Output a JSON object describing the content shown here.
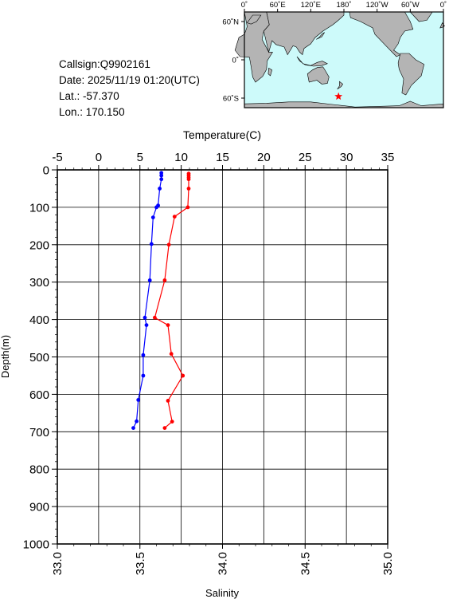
{
  "info": {
    "callsign": "Callsign:Q9902161",
    "date": "Date:  2025/11/19 01:20(UTC)",
    "lat": "Lat.:  -57.370",
    "lon": "Lon.:  170.150"
  },
  "map": {
    "lon_labels": [
      "0˚",
      "60˚E",
      "120˚E",
      "180˚",
      "120˚W",
      "60˚W",
      "0˚"
    ],
    "lat_labels": [
      "60˚N",
      "0˚",
      "60˚S"
    ],
    "ocean_color": "#cdfafa",
    "land_color": "#b4b4b4",
    "marker": {
      "lon": 170.15,
      "lat": -57.37,
      "color": "#ff0000"
    }
  },
  "chart_data": {
    "type": "line",
    "y_axis": {
      "label": "Depth(m)",
      "range": [
        0,
        1000
      ],
      "ticks": [
        "0",
        "100",
        "200",
        "300",
        "400",
        "500",
        "600",
        "700",
        "800",
        "900",
        "1000"
      ],
      "inverted": true
    },
    "top_axis": {
      "label": "Temperature(C)",
      "range": [
        -5,
        35
      ],
      "ticks": [
        "-5",
        "0",
        "5",
        "10",
        "15",
        "20",
        "25",
        "30",
        "35"
      ]
    },
    "bottom_axis": {
      "label": "Salinity",
      "range": [
        33.0,
        35.0
      ],
      "ticks": [
        "33.0",
        "33.5",
        "34.0",
        "34.5",
        "35.0"
      ]
    },
    "grid": true,
    "series": [
      {
        "axis": "top",
        "color": "#ff0000",
        "points": [
          {
            "x": 10.9,
            "y": 10
          },
          {
            "x": 10.9,
            "y": 15
          },
          {
            "x": 10.9,
            "y": 20
          },
          {
            "x": 10.9,
            "y": 25
          },
          {
            "x": 10.9,
            "y": 50
          },
          {
            "x": 10.8,
            "y": 100
          },
          {
            "x": 9.2,
            "y": 125
          },
          {
            "x": 8.5,
            "y": 200
          },
          {
            "x": 8.0,
            "y": 295
          },
          {
            "x": 6.8,
            "y": 395
          },
          {
            "x": 8.4,
            "y": 415
          },
          {
            "x": 8.8,
            "y": 492
          },
          {
            "x": 10.2,
            "y": 550
          },
          {
            "x": 8.4,
            "y": 617
          },
          {
            "x": 8.9,
            "y": 673
          },
          {
            "x": 8.0,
            "y": 690
          }
        ]
      },
      {
        "axis": "bottom",
        "color": "#0000ff",
        "points": [
          {
            "x": 33.63,
            "y": 8
          },
          {
            "x": 33.63,
            "y": 15
          },
          {
            "x": 33.63,
            "y": 25
          },
          {
            "x": 33.62,
            "y": 50
          },
          {
            "x": 33.61,
            "y": 95
          },
          {
            "x": 33.6,
            "y": 100
          },
          {
            "x": 33.58,
            "y": 127
          },
          {
            "x": 33.57,
            "y": 198
          },
          {
            "x": 33.56,
            "y": 295
          },
          {
            "x": 33.53,
            "y": 395
          },
          {
            "x": 33.54,
            "y": 415
          },
          {
            "x": 33.52,
            "y": 495
          },
          {
            "x": 33.52,
            "y": 550
          },
          {
            "x": 33.49,
            "y": 615
          },
          {
            "x": 33.48,
            "y": 672
          },
          {
            "x": 33.46,
            "y": 690
          }
        ]
      }
    ]
  }
}
